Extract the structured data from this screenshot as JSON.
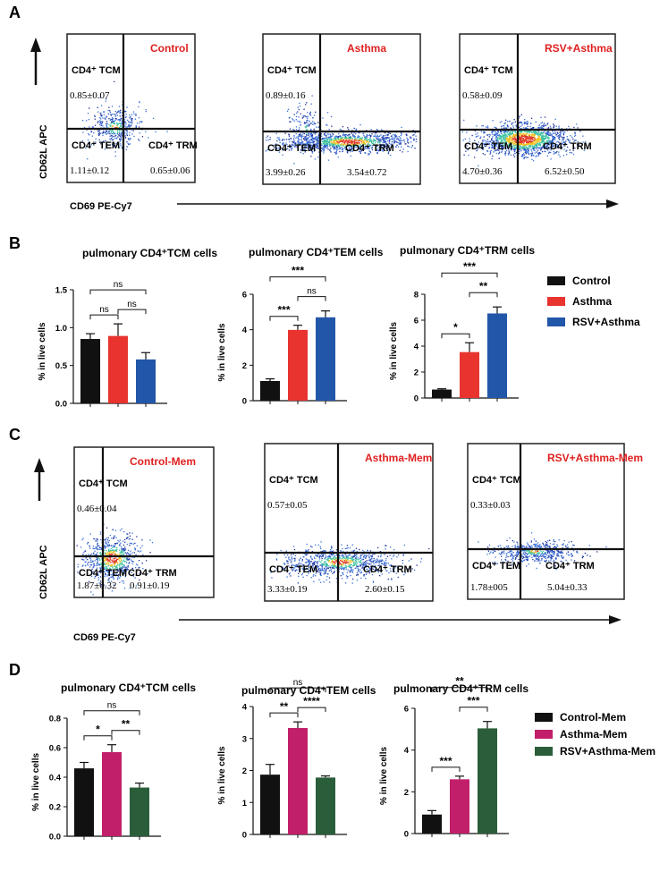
{
  "panels": {
    "A": {
      "letter": "A",
      "y_axis_label": "CD62L APC",
      "x_axis_label": "CD69 PE-Cy7",
      "plots": [
        {
          "title": "Control",
          "tcm": "0.85±0.07",
          "tem": "1.11±0.12",
          "trm": "0.65±0.06",
          "labels": [
            "CD4⁺ TCM",
            "CD4⁺ TEM",
            "CD4⁺ TRM"
          ]
        },
        {
          "title": "Asthma",
          "tcm": "0.89±0.16",
          "tem": "3.99±0.26",
          "trm": "3.54±0.72",
          "labels": [
            "CD4⁺ TCM",
            "CD4⁺ TEM",
            "CD4⁺ TRM"
          ]
        },
        {
          "title": "RSV+Asthma",
          "tcm": "0.58±0.09",
          "tem": "4.70±0.36",
          "trm": "6.52±0.50",
          "labels": [
            "CD4⁺ TCM",
            "CD4⁺ TEM",
            "CD4⁺ TRM"
          ]
        }
      ]
    },
    "C": {
      "letter": "C",
      "y_axis_label": "CD62L APC",
      "x_axis_label": "CD69 PE-Cy7",
      "plots": [
        {
          "title": "Control-Mem",
          "tcm": "0.46±0.04",
          "tem": "1.87±0.32",
          "trm": "0.91±0.19",
          "labels": [
            "CD4⁺ TCM",
            "CD4⁺ TEM",
            "CD4⁺ TRM"
          ]
        },
        {
          "title": "Asthma-Mem",
          "tcm": "0.57±0.05",
          "tem": "3.33±0.19",
          "trm": "2.60±0.15",
          "labels": [
            "CD4⁺ TCM",
            "CD4⁺ TEM",
            "CD4⁺ TRM"
          ]
        },
        {
          "title": "RSV+Asthma-Mem",
          "tcm": "0.33±0.03",
          "tem": "1.78±005",
          "trm": "5.04±0.33",
          "labels": [
            "CD4⁺ TCM",
            "CD4⁺ TEM",
            "CD4⁺ TRM"
          ]
        }
      ]
    },
    "B": {
      "letter": "B",
      "legend": [
        "Control",
        "Asthma",
        "RSV+Asthma"
      ]
    },
    "D": {
      "letter": "D",
      "legend": [
        "Control-Mem",
        "Asthma-Mem",
        "RSV+Asthma-Mem"
      ]
    }
  },
  "colors": {
    "control": "#111111",
    "asthma": "#e8332f",
    "rsv": "#2256a8",
    "asthma_mem": "#c21f6a",
    "rsv_mem": "#2a5e3a",
    "title_red": "#e02020"
  },
  "chart_data": [
    {
      "type": "bar",
      "panel": "B",
      "title": "pulmonary CD4⁺TCM cells",
      "ylabel": "% in live cells",
      "categories": [
        "Control",
        "Asthma",
        "RSV+Asthma"
      ],
      "values": [
        0.85,
        0.89,
        0.58
      ],
      "errors": [
        0.07,
        0.16,
        0.09
      ],
      "ylim": [
        0,
        1.5
      ],
      "yticks": [
        "0.0",
        "0.5",
        "1.0",
        "1.5"
      ],
      "significance": [
        {
          "pair": [
            0,
            1
          ],
          "label": "ns"
        },
        {
          "pair": [
            1,
            2
          ],
          "label": "ns"
        },
        {
          "pair": [
            0,
            2
          ],
          "label": "ns"
        }
      ]
    },
    {
      "type": "bar",
      "panel": "B",
      "title": "pulmonary CD4⁺TEM cells",
      "ylabel": "% in live cells",
      "categories": [
        "Control",
        "Asthma",
        "RSV+Asthma"
      ],
      "values": [
        1.11,
        3.99,
        4.7
      ],
      "errors": [
        0.12,
        0.26,
        0.36
      ],
      "ylim": [
        0,
        6
      ],
      "yticks": [
        "0",
        "2",
        "4",
        "6"
      ],
      "significance": [
        {
          "pair": [
            0,
            1
          ],
          "label": "***"
        },
        {
          "pair": [
            1,
            2
          ],
          "label": "ns"
        },
        {
          "pair": [
            0,
            2
          ],
          "label": "***"
        }
      ]
    },
    {
      "type": "bar",
      "panel": "B",
      "title": "pulmonary CD4⁺TRM cells",
      "ylabel": "% in live cells",
      "categories": [
        "Control",
        "Asthma",
        "RSV+Asthma"
      ],
      "values": [
        0.65,
        3.54,
        6.52
      ],
      "errors": [
        0.06,
        0.72,
        0.5
      ],
      "ylim": [
        0,
        8
      ],
      "yticks": [
        "0",
        "2",
        "4",
        "6",
        "8"
      ],
      "significance": [
        {
          "pair": [
            0,
            1
          ],
          "label": "*"
        },
        {
          "pair": [
            1,
            2
          ],
          "label": "**"
        },
        {
          "pair": [
            0,
            2
          ],
          "label": "***"
        }
      ]
    },
    {
      "type": "bar",
      "panel": "D",
      "title": "pulmonary CD4⁺TCM cells",
      "ylabel": "% in live cells",
      "categories": [
        "Control-Mem",
        "Asthma-Mem",
        "RSV+Asthma-Mem"
      ],
      "values": [
        0.46,
        0.57,
        0.33
      ],
      "errors": [
        0.04,
        0.05,
        0.03
      ],
      "ylim": [
        0,
        0.8
      ],
      "yticks": [
        "0.0",
        "0.2",
        "0.4",
        "0.6",
        "0.8"
      ],
      "significance": [
        {
          "pair": [
            0,
            1
          ],
          "label": "*"
        },
        {
          "pair": [
            1,
            2
          ],
          "label": "**"
        },
        {
          "pair": [
            0,
            2
          ],
          "label": "ns"
        }
      ]
    },
    {
      "type": "bar",
      "panel": "D",
      "title": "pulmonary CD4⁺TEM cells",
      "ylabel": "% in live cells",
      "categories": [
        "Control-Mem",
        "Asthma-Mem",
        "RSV+Asthma-Mem"
      ],
      "values": [
        1.87,
        3.33,
        1.78
      ],
      "errors": [
        0.32,
        0.19,
        0.05
      ],
      "ylim": [
        0,
        4
      ],
      "yticks": [
        "0",
        "1",
        "2",
        "3",
        "4"
      ],
      "significance": [
        {
          "pair": [
            0,
            1
          ],
          "label": "**"
        },
        {
          "pair": [
            1,
            2
          ],
          "label": "****"
        },
        {
          "pair": [
            0,
            2
          ],
          "label": "ns"
        }
      ]
    },
    {
      "type": "bar",
      "panel": "D",
      "title": "pulmonary CD4⁺TRM cells",
      "ylabel": "% in live cells",
      "categories": [
        "Control-Mem",
        "Asthma-Mem",
        "RSV+Asthma-Mem"
      ],
      "values": [
        0.91,
        2.6,
        5.04
      ],
      "errors": [
        0.19,
        0.15,
        0.33
      ],
      "ylim": [
        0,
        6
      ],
      "yticks": [
        "0",
        "2",
        "4",
        "6"
      ],
      "significance": [
        {
          "pair": [
            0,
            1
          ],
          "label": "***"
        },
        {
          "pair": [
            1,
            2
          ],
          "label": "***"
        },
        {
          "pair": [
            0,
            2
          ],
          "label": "**"
        }
      ]
    }
  ]
}
